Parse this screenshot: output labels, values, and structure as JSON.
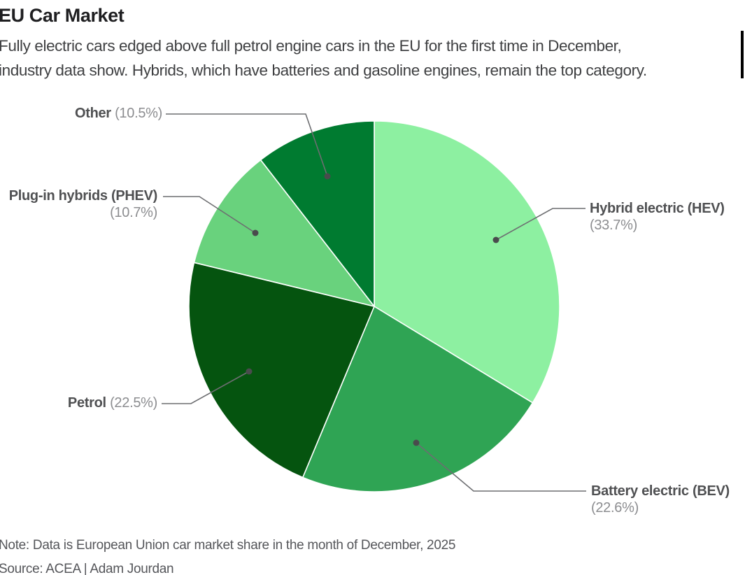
{
  "header": {
    "title": "EU Car Market",
    "subtitle_line1": "Fully electric cars edged above full petrol engine cars in the EU for the first time in December,",
    "subtitle_line2": "industry data show. Hybrids, which have batteries and gasoline engines, remain the top category."
  },
  "chart_data": {
    "type": "pie",
    "title": "EU Car Market",
    "direction": "clockwise",
    "start_angle_deg": 0,
    "slices": [
      {
        "label": "Hybrid electric (HEV)",
        "value": 33.7,
        "pct_display": "(33.7%)",
        "color": "#8DF0A1"
      },
      {
        "label": "Battery electric (BEV)",
        "value": 22.6,
        "pct_display": "(22.6%)",
        "color": "#2FA454"
      },
      {
        "label": "Petrol",
        "value": 22.5,
        "pct_display": "(22.5%)",
        "color": "#05540F"
      },
      {
        "label": "Plug-in hybrids (PHEV)",
        "value": 10.7,
        "pct_display": "(10.7%)",
        "color": "#69D27D"
      },
      {
        "label": "Other",
        "value": 10.5,
        "pct_display": "(10.5%)",
        "color": "#007B30"
      }
    ]
  },
  "footer": {
    "note": "Note: Data is European Union car market share in the month of December, 2025",
    "source": "Source: ACEA | Adam Jourdan"
  },
  "style": {
    "leader_line_color": "#6d6e71",
    "leader_dot_color": "#4a4b4d",
    "slice_border_color": "#ffffff"
  }
}
